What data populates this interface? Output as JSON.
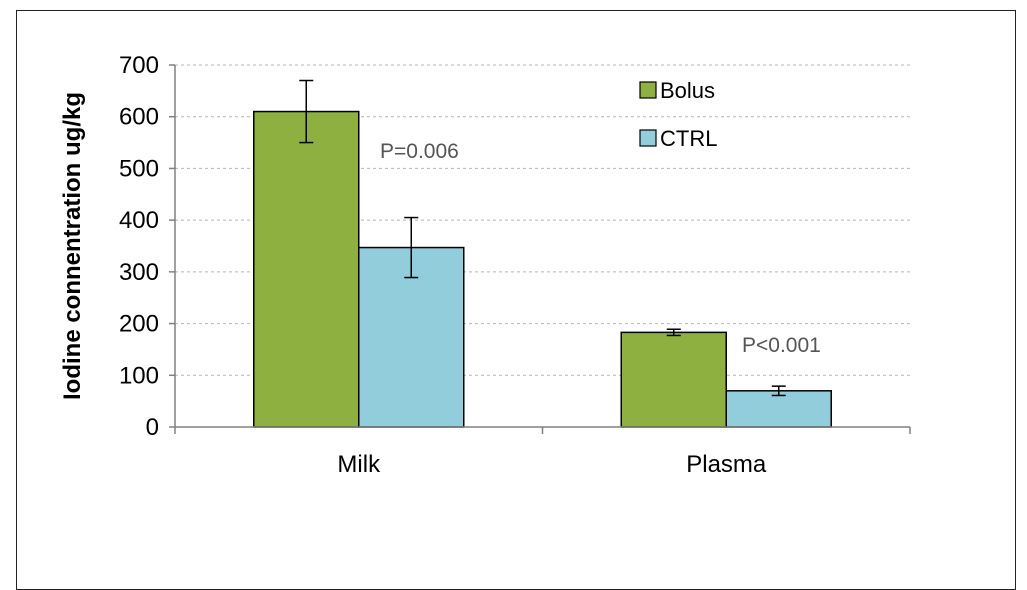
{
  "chart_data": {
    "type": "bar",
    "categories": [
      "Milk",
      "Plasma"
    ],
    "series": [
      {
        "name": "Bolus",
        "values": [
          610,
          183
        ],
        "errors": [
          60,
          6
        ],
        "color": "#8db040"
      },
      {
        "name": "CTRL",
        "values": [
          347,
          70
        ],
        "errors": [
          58,
          9
        ],
        "color": "#92cddc"
      }
    ],
    "ylabel": "Iodine connentration ug/kg",
    "ylim": [
      0,
      700
    ],
    "yticks": [
      0,
      100,
      200,
      300,
      400,
      500,
      600,
      700
    ],
    "yticklabels": [
      "0",
      "100",
      "200",
      "300",
      "400",
      "500",
      "600",
      "700"
    ],
    "grid": true,
    "legend": "top-right",
    "annotations": [
      {
        "text": "P=0.006",
        "category": "Milk"
      },
      {
        "text": "P<0.001",
        "category": "Plasma"
      }
    ]
  }
}
